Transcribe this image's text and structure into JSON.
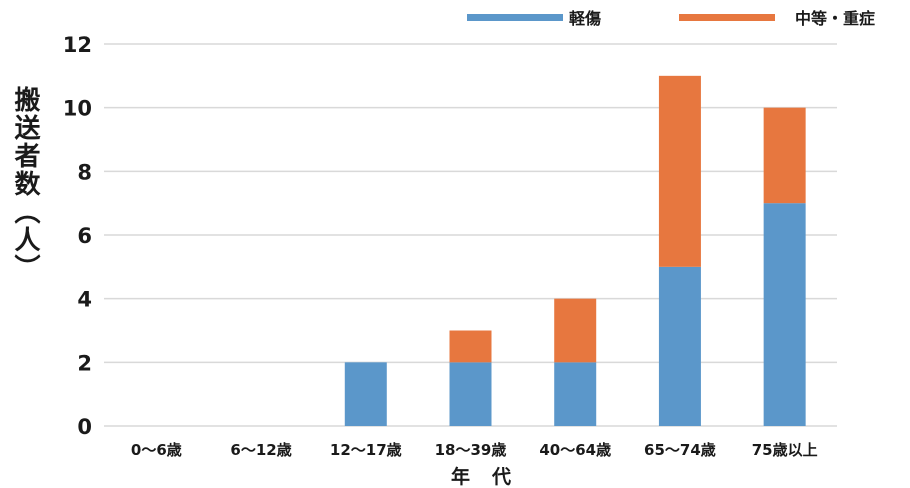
{
  "chart_data": {
    "type": "bar",
    "stacked": true,
    "categories": [
      "0～6歳",
      "6～12歳",
      "12～17歳",
      "18～39歳",
      "40～64歳",
      "65～74歳",
      "75歳以上"
    ],
    "series": [
      {
        "name": "軽傷",
        "values": [
          0,
          0,
          2,
          2,
          2,
          5,
          7
        ],
        "color": "#5B97CA"
      },
      {
        "name": "中等・重症",
        "values": [
          0,
          0,
          0,
          1,
          2,
          6,
          3
        ],
        "color": "#E7773F"
      }
    ],
    "xlabel": "年代",
    "ylabel": "搬送者数（人）",
    "ylim": [
      0,
      12
    ],
    "yticks": [
      0,
      2,
      4,
      6,
      8,
      10,
      12
    ],
    "grid": true,
    "legend_position": "top-right",
    "gridline_color": "#d9d9d9"
  }
}
